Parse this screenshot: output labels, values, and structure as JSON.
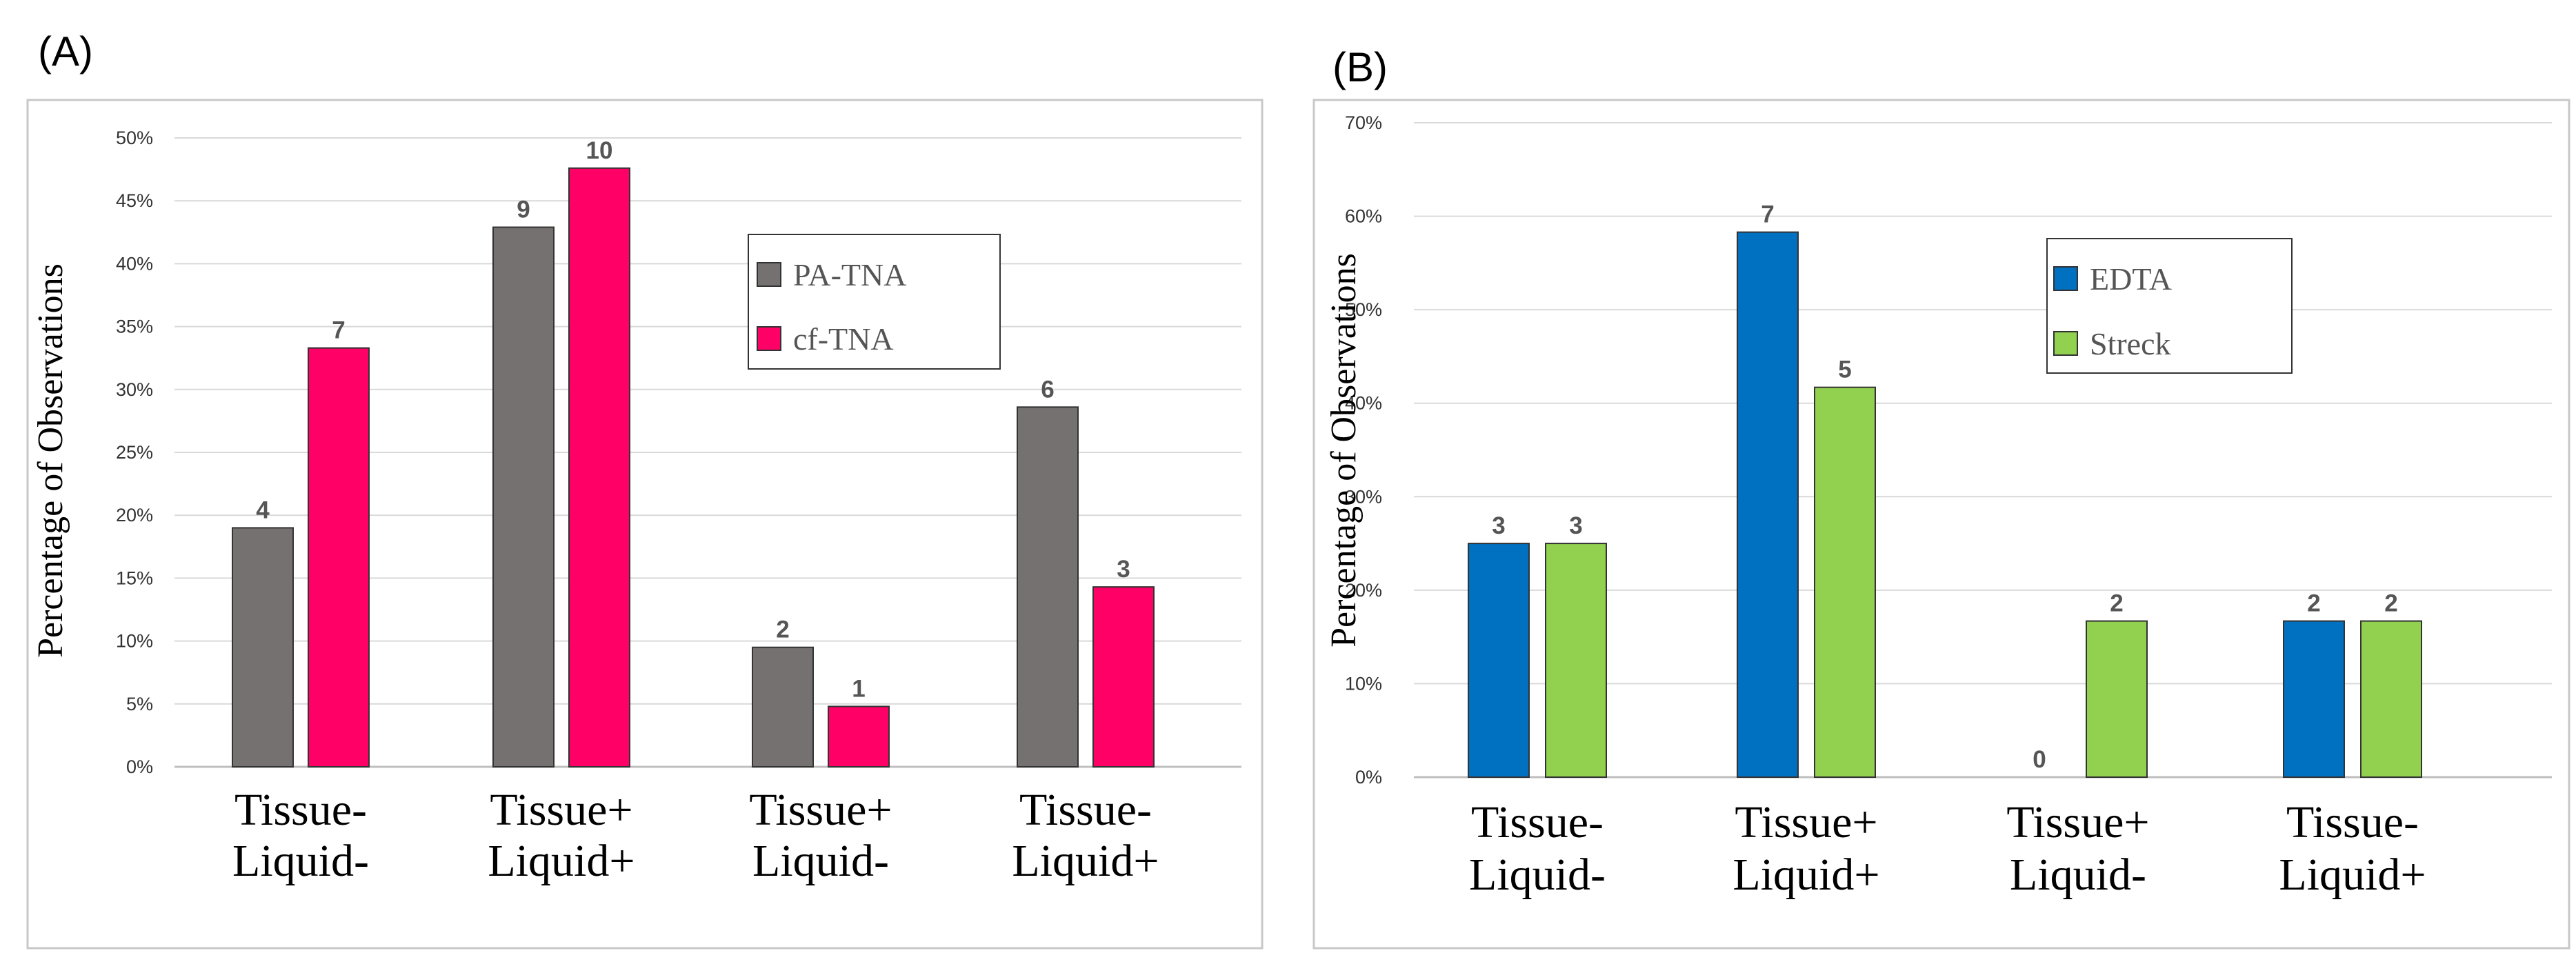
{
  "panels": [
    {
      "label": "(A)"
    },
    {
      "label": "(B)"
    }
  ],
  "chart_data": [
    {
      "type": "bar",
      "panel": "(A)",
      "ylabel": "Percentage  of Observations",
      "ylim": [
        0,
        50
      ],
      "yticks": [
        "0%",
        "5%",
        "10%",
        "15%",
        "20%",
        "25%",
        "30%",
        "35%",
        "40%",
        "45%",
        "50%"
      ],
      "grid": true,
      "legend_position": "upper-right",
      "categories": [
        [
          "Tissue-",
          "Liquid-"
        ],
        [
          "Tissue+",
          "Liquid+"
        ],
        [
          "Tissue+",
          "Liquid-"
        ],
        [
          "Tissue-",
          "Liquid+"
        ]
      ],
      "series": [
        {
          "name": "PA-TNA",
          "color": "#767171",
          "values": [
            19.0,
            42.9,
            9.5,
            28.6
          ],
          "labels": [
            "4",
            "9",
            "2",
            "6"
          ]
        },
        {
          "name": "cf-TNA",
          "color": "#ff0066",
          "values": [
            33.3,
            47.6,
            4.8,
            14.3
          ],
          "labels": [
            "7",
            "10",
            "1",
            "3"
          ]
        }
      ]
    },
    {
      "type": "bar",
      "panel": "(B)",
      "ylabel": "Percentage  of Observations",
      "ylim": [
        0,
        70
      ],
      "yticks": [
        "0%",
        "10%",
        "20%",
        "30%",
        "40%",
        "50%",
        "60%",
        "70%"
      ],
      "grid": true,
      "legend_position": "upper-right",
      "categories": [
        [
          "Tissue-",
          "Liquid-"
        ],
        [
          "Tissue+",
          "Liquid+"
        ],
        [
          "Tissue+",
          "Liquid-"
        ],
        [
          "Tissue-",
          "Liquid+"
        ]
      ],
      "series": [
        {
          "name": "EDTA",
          "color": "#0070c0",
          "values": [
            25.0,
            58.3,
            0,
            16.7
          ],
          "labels": [
            "3",
            "7",
            "0",
            "2"
          ]
        },
        {
          "name": "Streck",
          "color": "#92d050",
          "values": [
            25.0,
            41.7,
            16.7,
            16.7
          ],
          "labels": [
            "3",
            "5",
            "2",
            "2"
          ]
        }
      ]
    }
  ]
}
